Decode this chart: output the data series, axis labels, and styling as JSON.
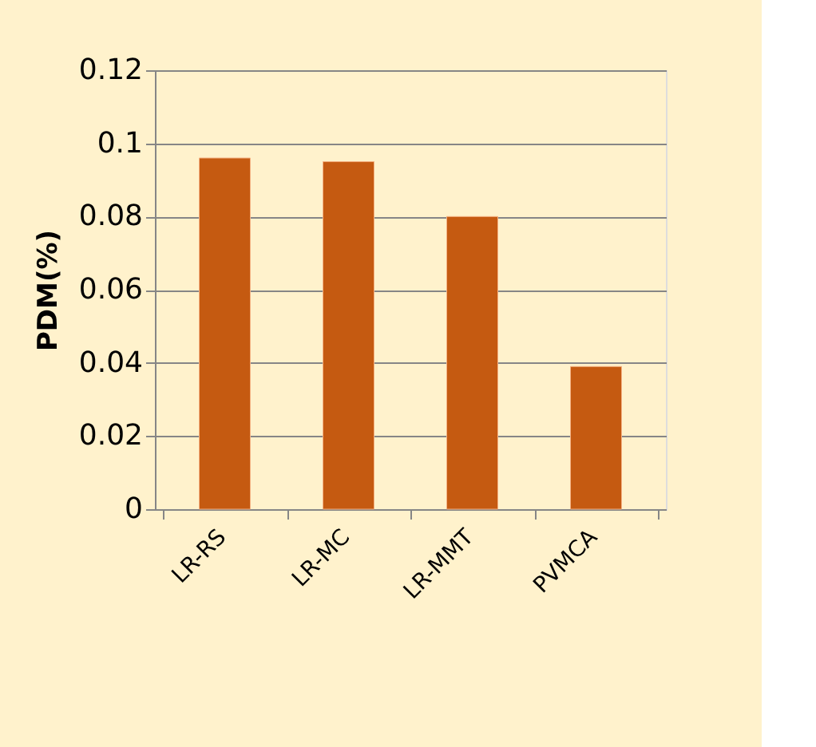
{
  "chart_data": {
    "type": "bar",
    "ylabel": "PDM(%)",
    "categories": [
      "LR-RS",
      "LR-MC",
      "LR-MMT",
      "PVMCA"
    ],
    "values": [
      0.096,
      0.095,
      0.08,
      0.039
    ],
    "color": "#c55a11",
    "ylim": [
      0,
      0.12
    ],
    "yticks": [
      0,
      0.02,
      0.04,
      0.06,
      0.08,
      0.1,
      0.12
    ],
    "grid": "y"
  }
}
